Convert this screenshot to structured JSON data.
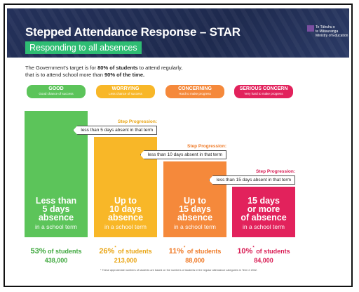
{
  "header": {
    "title": "Stepped Attendance Response – ",
    "title_bold": "STAR",
    "subtitle": "Responding to all absences",
    "logo": [
      "Te Tāhuhu o",
      "te Mātauranga",
      "Ministry of Education"
    ]
  },
  "intro": [
    "The Government's target is for ",
    "80% of students",
    " to attend regularly,",
    "that is to attend school more than ",
    "90% of the time."
  ],
  "levels": [
    {
      "label": "GOOD",
      "sub": "Good chance of success",
      "lines": [
        "Less than",
        "5 days",
        "absence"
      ],
      "term": "in a school term",
      "pct": "53%",
      "tail": " of students",
      "count": "438,000"
    },
    {
      "label": "WORRYING",
      "sub": "Less chance of success",
      "step_label": "Step Progression:",
      "step_text": "less than 5 days absent in that term",
      "lines": [
        "Up to",
        "10 days",
        "absence"
      ],
      "term": "in a school term",
      "pct": "26%",
      "mark": "*",
      "tail": " of students",
      "count": "213,000"
    },
    {
      "label": "CONCERNING",
      "sub": "Hard to make progress",
      "step_label": "Step Progression:",
      "step_text": "less than 10 days absent in that term",
      "lines": [
        "Up to",
        "15 days",
        "absence"
      ],
      "term": "in a school term",
      "pct": "11%",
      "mark": "*",
      "tail": " of students",
      "count": "88,000"
    },
    {
      "label": "SERIOUS CONCERN",
      "sub": "Very hard to make progress",
      "step_label": "Step Progression:",
      "step_text": "less than 15 days absent in that term",
      "lines": [
        "15 days",
        "or more",
        "of absence"
      ],
      "term": "in a school term",
      "pct": "10%",
      "mark": "*",
      "tail": " of students",
      "count": "84,000"
    }
  ],
  "footnote": "* These approximate numbers of students are based on the numbers of students in the regular attendance categories in Term 2 2022."
}
